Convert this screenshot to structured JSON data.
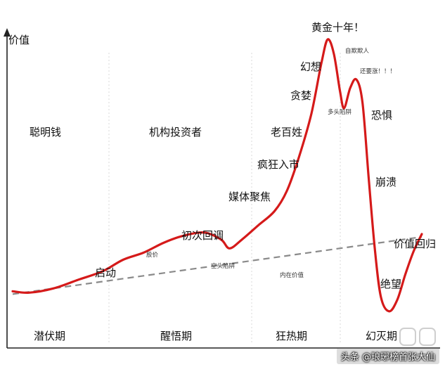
{
  "chart_data": {
    "type": "line",
    "ylabel": "价值",
    "phases": [
      "潜伏期",
      "醒悟期",
      "狂热期",
      "幻灭期"
    ],
    "series": [
      {
        "name": "",
        "color": "#d51a1a",
        "points": [
          [
            0.0,
            0.1
          ],
          [
            0.04,
            0.095
          ],
          [
            0.1,
            0.11
          ],
          [
            0.16,
            0.14
          ],
          [
            0.22,
            0.17
          ],
          [
            0.27,
            0.21
          ],
          [
            0.32,
            0.235
          ],
          [
            0.37,
            0.27
          ],
          [
            0.42,
            0.295
          ],
          [
            0.47,
            0.305
          ],
          [
            0.51,
            0.28
          ],
          [
            0.53,
            0.25
          ],
          [
            0.56,
            0.28
          ],
          [
            0.6,
            0.33
          ],
          [
            0.64,
            0.38
          ],
          [
            0.67,
            0.45
          ],
          [
            0.7,
            0.57
          ],
          [
            0.73,
            0.72
          ],
          [
            0.755,
            0.9
          ],
          [
            0.77,
            0.98
          ],
          [
            0.785,
            0.93
          ],
          [
            0.8,
            0.8
          ],
          [
            0.81,
            0.74
          ],
          [
            0.825,
            0.81
          ],
          [
            0.84,
            0.84
          ],
          [
            0.855,
            0.76
          ],
          [
            0.87,
            0.5
          ],
          [
            0.885,
            0.25
          ],
          [
            0.9,
            0.08
          ],
          [
            0.92,
            0.03
          ],
          [
            0.94,
            0.07
          ],
          [
            0.96,
            0.16
          ],
          [
            0.98,
            0.24
          ],
          [
            1.0,
            0.3
          ]
        ]
      },
      {
        "name": "",
        "color": "#8a8a8a",
        "dashed": true,
        "points": [
          [
            0.0,
            0.09
          ],
          [
            1.0,
            0.29
          ]
        ]
      }
    ],
    "annotations": {
      "smart_money": "聪明钱",
      "institutions": "机构投资者",
      "retail": "老百姓",
      "launch": "启动",
      "stock_price": "股价",
      "first_pullback": "初次回调",
      "bear_trap": "空头陷阱",
      "intrinsic_value": "内在价值",
      "media": "媒体聚焦",
      "mania": "疯狂入市",
      "greed": "贪婪",
      "illusion": "幻想",
      "golden_decade": "黄金十年！",
      "self_deception": "自欺欺人",
      "bull_trap": "多头陷阱",
      "still_rising": "还要涨！！！",
      "fear": "恐惧",
      "collapse": "崩溃",
      "mean_reversion": "价值回归",
      "despair": "绝望"
    },
    "grid": false
  },
  "watermark": "头条 @琅琊榜首张大仙"
}
